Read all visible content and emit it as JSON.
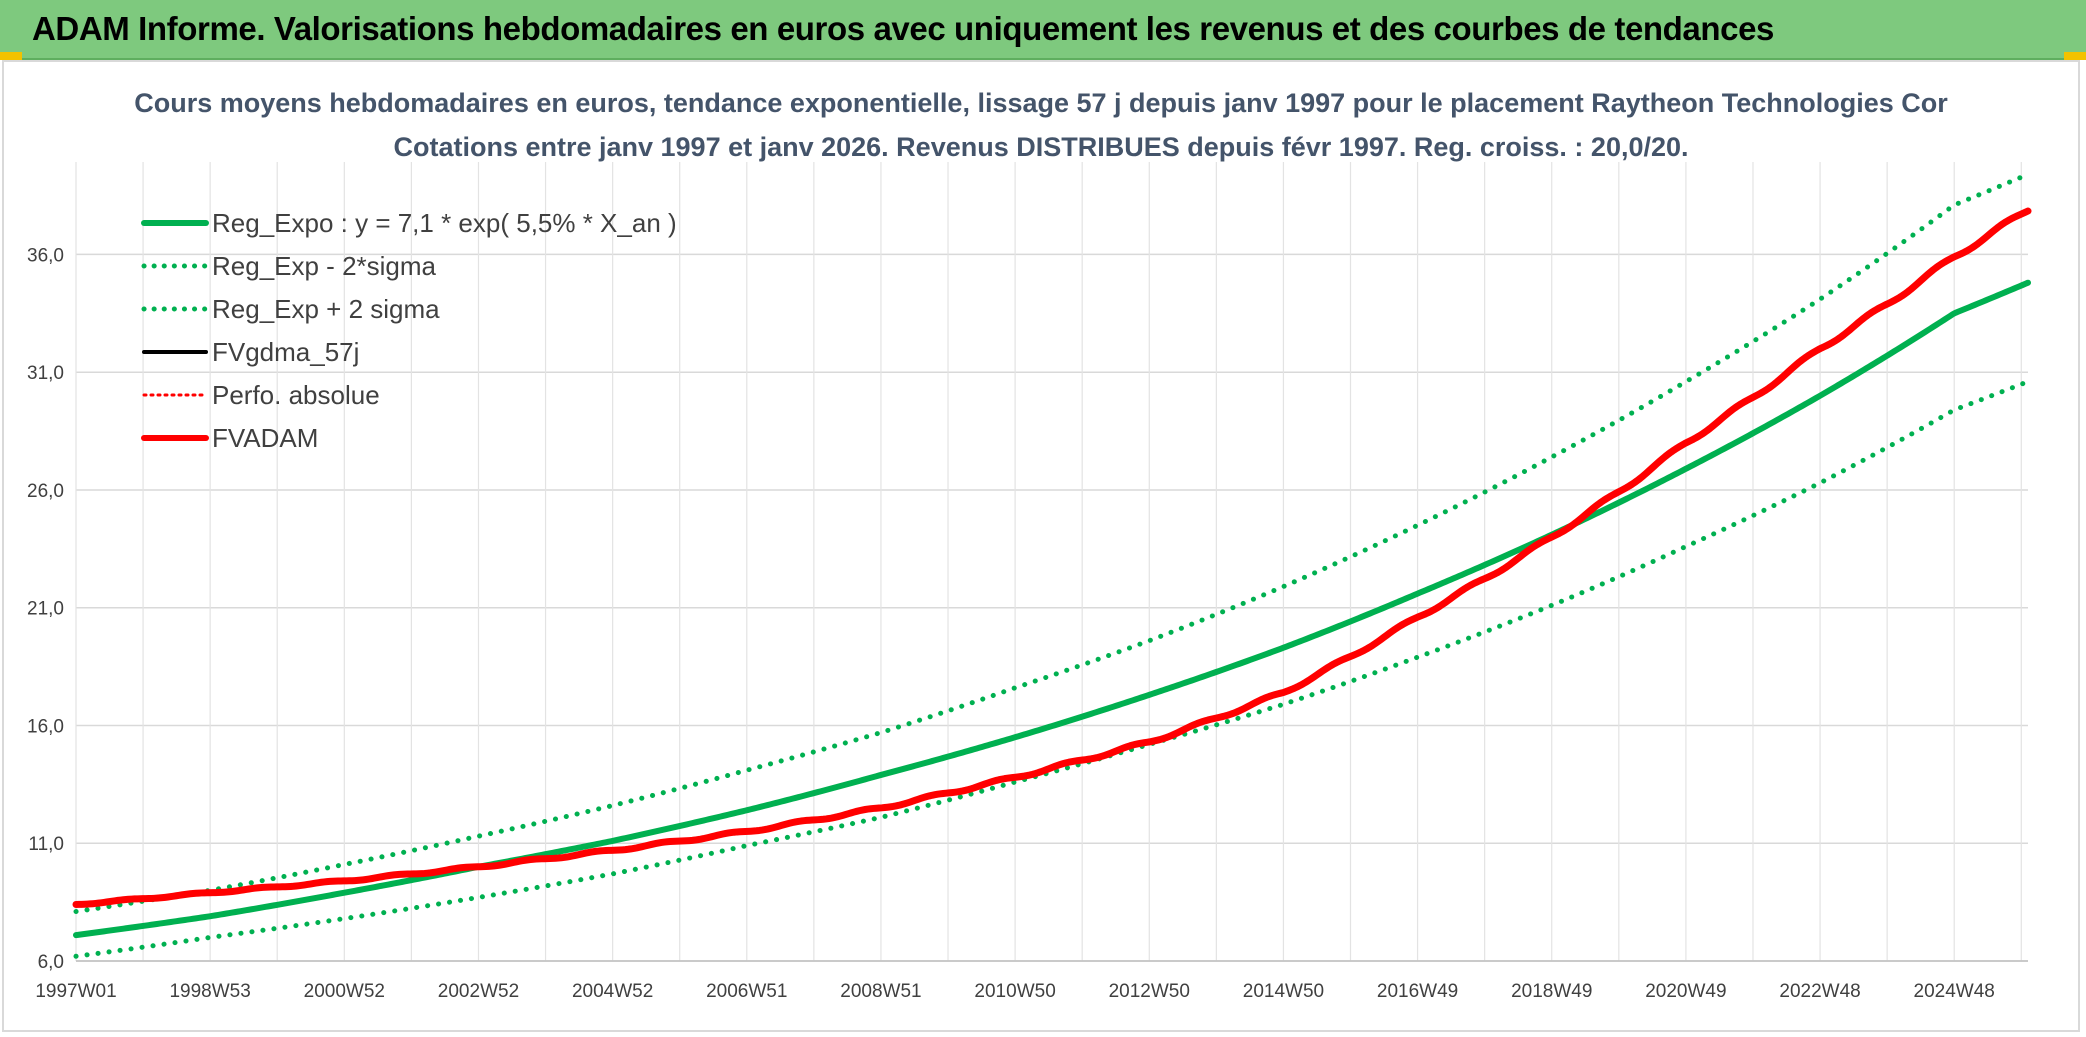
{
  "banner": {
    "title": "ADAM Informe. Valorisations hebdomadaires en euros avec uniquement les revenus et des courbes de tendances"
  },
  "colors": {
    "banner_bg": "#7ec97e",
    "corner_accent": "#f2c200",
    "trend_green": "#00b050",
    "fvadam_red": "#ff0000",
    "fvgdma_black": "#000000",
    "title_text": "#44546a"
  },
  "chart_data": {
    "type": "line",
    "title_lines": [
      "Cours moyens hebdomadaires en euros, tendance exponentielle, lissage 57 j depuis janv 1997 pour le placement Raytheon Technologies Cor",
      "Cotations entre janv 1997 et janv 2026. Revenus DISTRIBUES depuis févr 1997. Reg. croiss. : 20,0/20."
    ],
    "xlabel": "",
    "ylabel": "",
    "ylim": [
      6,
      39.5
    ],
    "xlim": [
      1997.0,
      2026.1
    ],
    "y_ticks": [
      6,
      11,
      16,
      21,
      26,
      31,
      36
    ],
    "y_tick_labels": [
      "6,0",
      "11,0",
      "16,0",
      "21,0",
      "26,0",
      "31,0",
      "36,0"
    ],
    "x_tick_labels": [
      {
        "label": "1997W01",
        "year": 1997.0
      },
      {
        "label": "1998W53",
        "year": 1999.0
      },
      {
        "label": "2000W52",
        "year": 2001.0
      },
      {
        "label": "2002W52",
        "year": 2003.0
      },
      {
        "label": "2004W52",
        "year": 2005.0
      },
      {
        "label": "2006W51",
        "year": 2007.0
      },
      {
        "label": "2008W51",
        "year": 2009.0
      },
      {
        "label": "2010W50",
        "year": 2011.0
      },
      {
        "label": "2012W50",
        "year": 2013.0
      },
      {
        "label": "2014W50",
        "year": 2015.0
      },
      {
        "label": "2016W49",
        "year": 2017.0
      },
      {
        "label": "2018W49",
        "year": 2019.0
      },
      {
        "label": "2020W49",
        "year": 2021.0
      },
      {
        "label": "2022W48",
        "year": 2023.0
      },
      {
        "label": "2024W48",
        "year": 2025.0
      }
    ],
    "grid": true,
    "legend_position": "top-left",
    "series": [
      {
        "name": "Reg_Expo : y = 7,1 * exp( 5,5% *  X_an )",
        "color": "#00b050",
        "style": "solid",
        "x": [
          1997,
          1999,
          2001,
          2003,
          2005,
          2007,
          2009,
          2011,
          2013,
          2015,
          2017,
          2019,
          2021,
          2023,
          2025,
          2026.1
        ],
        "y": [
          7.1,
          7.9,
          8.9,
          10.0,
          11.1,
          12.4,
          13.9,
          15.5,
          17.3,
          19.3,
          21.6,
          24.1,
          26.9,
          30.0,
          33.5,
          34.8
        ]
      },
      {
        "name": "Reg_Exp - 2*sigma",
        "color": "#00b050",
        "style": "dotted",
        "x": [
          1997,
          1999,
          2001,
          2003,
          2005,
          2007,
          2009,
          2011,
          2013,
          2015,
          2017,
          2019,
          2021,
          2023,
          2025,
          2026.1
        ],
        "y": [
          6.2,
          7.0,
          7.8,
          8.7,
          9.7,
          10.9,
          12.1,
          13.6,
          15.2,
          16.9,
          18.9,
          21.1,
          23.6,
          26.3,
          29.4,
          30.6
        ]
      },
      {
        "name": "Reg_Exp + 2 sigma",
        "color": "#00b050",
        "style": "dotted",
        "x": [
          1997,
          1999,
          2001,
          2003,
          2005,
          2007,
          2009,
          2011,
          2013,
          2015,
          2017,
          2019,
          2021,
          2023,
          2025,
          2026.1
        ],
        "y": [
          8.1,
          9.0,
          10.1,
          11.3,
          12.6,
          14.1,
          15.7,
          17.6,
          19.6,
          21.9,
          24.5,
          27.4,
          30.6,
          34.1,
          38.1,
          39.4
        ]
      },
      {
        "name": "FVgdma_57j",
        "color": "#000000",
        "style": "solid",
        "x": [
          1997,
          1999,
          2001,
          2003,
          2005,
          2007,
          2009,
          2011,
          2013,
          2015,
          2017,
          2019,
          2021,
          2023,
          2025,
          2026.1
        ],
        "y": [
          8.4,
          8.9,
          9.4,
          10.0,
          10.7,
          11.5,
          12.5,
          13.8,
          15.3,
          17.4,
          20.6,
          24.0,
          28.0,
          32.0,
          35.9,
          37.9
        ]
      },
      {
        "name": "Perfo. absolue",
        "color": "#ff0000",
        "style": "dotted",
        "x": [
          1997,
          1999,
          2001,
          2003,
          2005,
          2007,
          2009,
          2011,
          2013,
          2015,
          2017,
          2019,
          2021,
          2023,
          2025,
          2026.1
        ],
        "y": [
          8.4,
          8.9,
          9.4,
          10.0,
          10.7,
          11.5,
          12.5,
          13.8,
          15.3,
          17.4,
          20.6,
          24.0,
          28.0,
          32.0,
          35.9,
          37.9
        ]
      },
      {
        "name": "FVADAM",
        "color": "#ff0000",
        "style": "solid",
        "x": [
          1997,
          1999,
          2001,
          2003,
          2005,
          2007,
          2009,
          2011,
          2013,
          2015,
          2017,
          2019,
          2021,
          2023,
          2025,
          2026.1
        ],
        "y": [
          8.4,
          8.9,
          9.4,
          10.0,
          10.7,
          11.5,
          12.5,
          13.8,
          15.3,
          17.4,
          20.6,
          24.0,
          28.0,
          32.0,
          35.9,
          37.9
        ]
      }
    ]
  }
}
